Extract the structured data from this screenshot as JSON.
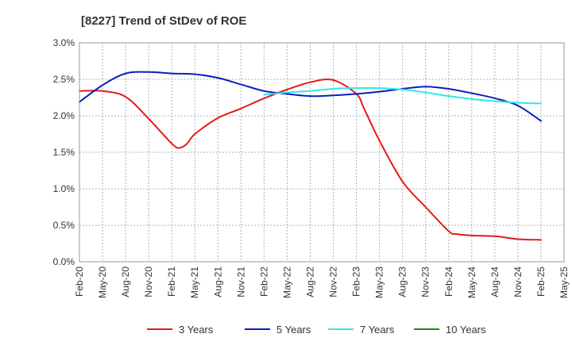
{
  "chart_data": {
    "type": "line",
    "title": "[8227]  Trend of StDev of ROE",
    "xlabel": "",
    "ylabel": "",
    "categories": [
      "Feb-20",
      "May-20",
      "Aug-20",
      "Nov-20",
      "Feb-21",
      "May-21",
      "Aug-21",
      "Nov-21",
      "Feb-22",
      "May-22",
      "Aug-22",
      "Nov-22",
      "Feb-23",
      "May-23",
      "Aug-23",
      "Nov-23",
      "Feb-24",
      "May-24",
      "Aug-24",
      "Nov-24",
      "Feb-25",
      "May-25"
    ],
    "yticks": [
      "0.0%",
      "0.5%",
      "1.0%",
      "1.5%",
      "2.0%",
      "2.5%",
      "3.0%"
    ],
    "ylim": [
      0,
      3.0
    ],
    "y_unit": "%",
    "grid": true,
    "legend_position": "bottom",
    "series": [
      {
        "name": "3 Years",
        "color": "#e31a1c",
        "points": [
          [
            "Feb-20",
            2.34
          ],
          [
            "May-20",
            2.34
          ],
          [
            "Aug-20",
            2.26
          ],
          [
            "Nov-20",
            1.96
          ],
          [
            "Feb-21",
            1.62
          ],
          [
            "Mar-21",
            1.56
          ],
          [
            "Apr-21",
            1.62
          ],
          [
            "May-21",
            1.75
          ],
          [
            "Aug-21",
            1.97
          ],
          [
            "Nov-21",
            2.1
          ],
          [
            "Feb-22",
            2.24
          ],
          [
            "May-22",
            2.36
          ],
          [
            "Aug-22",
            2.46
          ],
          [
            "Nov-22",
            2.49
          ],
          [
            "Feb-23",
            2.3
          ],
          [
            "Mar-23",
            2.1
          ],
          [
            "May-23",
            1.66
          ],
          [
            "Aug-23",
            1.1
          ],
          [
            "Nov-23",
            0.75
          ],
          [
            "Feb-24",
            0.42
          ],
          [
            "Mar-24",
            0.38
          ],
          [
            "May-24",
            0.36
          ],
          [
            "Aug-24",
            0.35
          ],
          [
            "Nov-24",
            0.31
          ],
          [
            "Feb-25",
            0.3
          ]
        ]
      },
      {
        "name": "5 Years",
        "color": "#0a1ebe",
        "points": [
          [
            "Feb-20",
            2.19
          ],
          [
            "May-20",
            2.42
          ],
          [
            "Aug-20",
            2.58
          ],
          [
            "Nov-20",
            2.6
          ],
          [
            "Feb-21",
            2.58
          ],
          [
            "May-21",
            2.57
          ],
          [
            "Aug-21",
            2.52
          ],
          [
            "Nov-21",
            2.43
          ],
          [
            "Feb-22",
            2.34
          ],
          [
            "May-22",
            2.3
          ],
          [
            "Aug-22",
            2.27
          ],
          [
            "Nov-22",
            2.28
          ],
          [
            "Feb-23",
            2.3
          ],
          [
            "May-23",
            2.33
          ],
          [
            "Aug-23",
            2.37
          ],
          [
            "Nov-23",
            2.4
          ],
          [
            "Feb-24",
            2.37
          ],
          [
            "May-24",
            2.31
          ],
          [
            "Aug-24",
            2.24
          ],
          [
            "Nov-24",
            2.14
          ],
          [
            "Feb-25",
            1.93
          ]
        ]
      },
      {
        "name": "7 Years",
        "color": "#33e6e6",
        "points": [
          [
            "Feb-22",
            2.29
          ],
          [
            "May-22",
            2.32
          ],
          [
            "Aug-22",
            2.34
          ],
          [
            "Nov-22",
            2.37
          ],
          [
            "Feb-23",
            2.38
          ],
          [
            "May-23",
            2.38
          ],
          [
            "Aug-23",
            2.36
          ],
          [
            "Nov-23",
            2.32
          ],
          [
            "Feb-24",
            2.27
          ],
          [
            "May-24",
            2.23
          ],
          [
            "Aug-24",
            2.2
          ],
          [
            "Nov-24",
            2.18
          ],
          [
            "Feb-25",
            2.17
          ]
        ]
      },
      {
        "name": "10 Years",
        "color": "#1a8a1a",
        "points": []
      }
    ]
  }
}
